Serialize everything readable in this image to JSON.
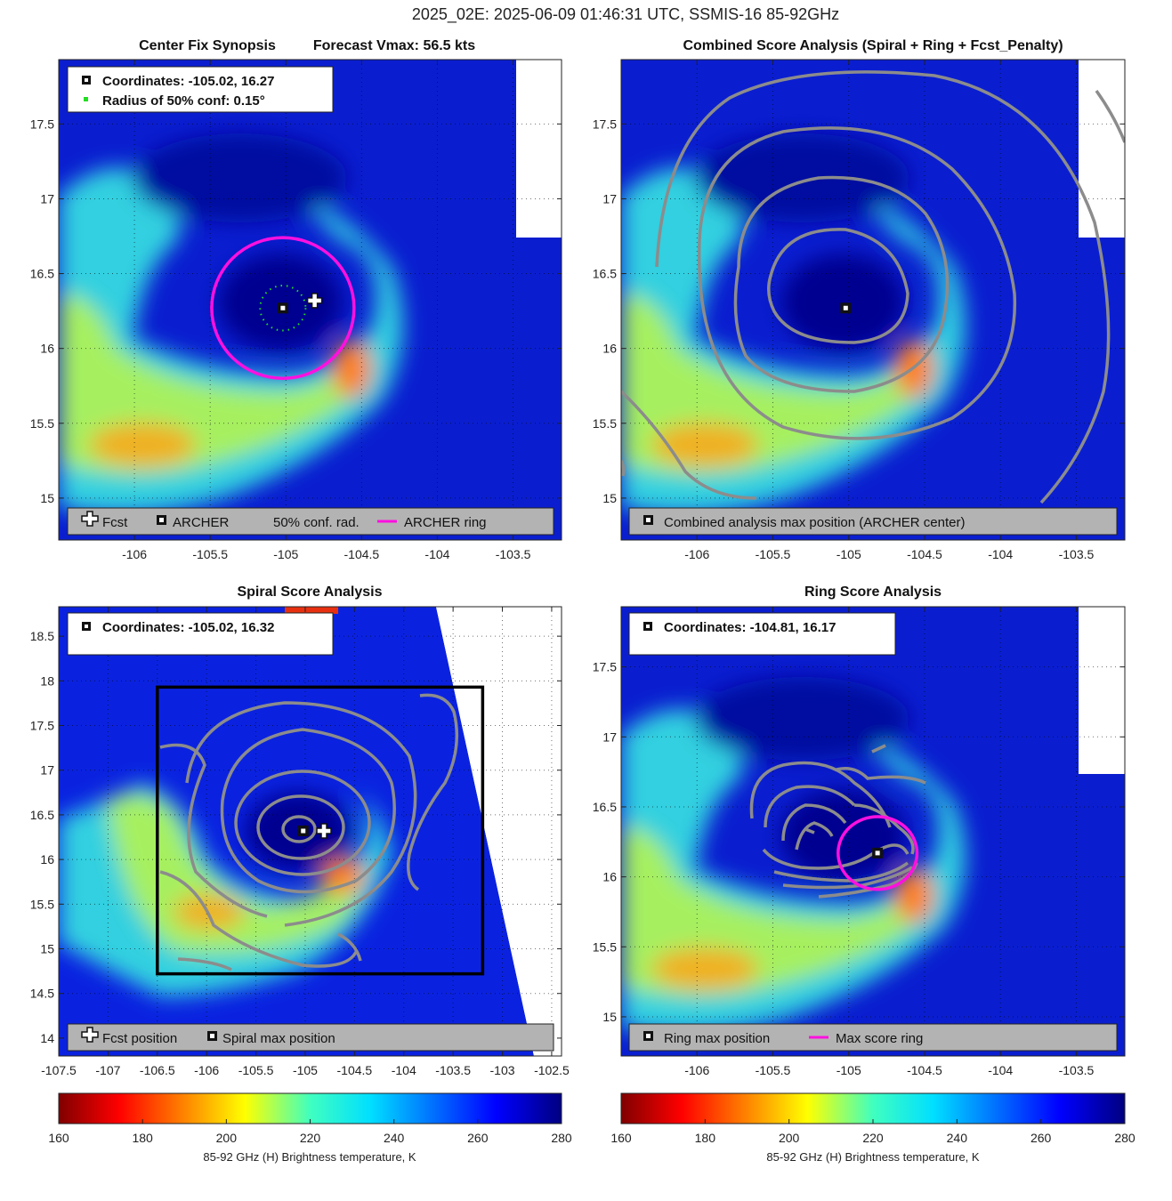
{
  "figure": {
    "suptitle": "2025_02E: 2025-06-09 01:46:31 UTC, SSMIS-16 85-92GHz"
  },
  "panels": {
    "center_fix": {
      "title_left": "Center Fix Synopsis",
      "title_right": "Forecast Vmax: 56.5 kts",
      "info_coords": "Coordinates: -105.02, 16.27",
      "info_radius": "Radius of 50% conf: 0.15°",
      "legend": [
        "Fcst",
        "ARCHER",
        "50% conf. rad.",
        "ARCHER ring"
      ]
    },
    "combined": {
      "title": "Combined Score Analysis (Spiral + Ring + Fcst_Penalty)",
      "legend": [
        "Combined analysis max position (ARCHER center)"
      ]
    },
    "spiral": {
      "title": "Spiral Score Analysis",
      "info_coords": "Coordinates: -105.02, 16.32",
      "legend": [
        "Fcst position",
        "Spiral max position"
      ]
    },
    "ring": {
      "title": "Ring Score Analysis",
      "info_coords": "Coordinates: -104.81, 16.17",
      "legend": [
        "Ring max position",
        "Max score ring"
      ]
    }
  },
  "chart_data": [
    {
      "type": "heatmap",
      "id": "center_fix",
      "title": "Center Fix Synopsis    Forecast Vmax: 56.5 kts",
      "xlim": [
        -106.5,
        -103.18
      ],
      "ylim": [
        14.72,
        17.93
      ],
      "xticks": [
        -106,
        -105.5,
        -105,
        -104.5,
        -104,
        -103.5
      ],
      "yticks": [
        15,
        15.5,
        16,
        16.5,
        17,
        17.5
      ],
      "archer_center": [
        -105.02,
        16.27
      ],
      "forecast_position": [
        -104.81,
        16.32
      ],
      "conf_radius_deg": 0.15,
      "archer_ring_radius_deg": 0.47,
      "grid": true
    },
    {
      "type": "heatmap",
      "id": "combined",
      "title": "Combined Score Analysis (Spiral + Ring + Fcst_Penalty)",
      "xlim": [
        -106.5,
        -103.18
      ],
      "ylim": [
        14.72,
        17.93
      ],
      "xticks": [
        -106,
        -105.5,
        -105,
        -104.5,
        -104,
        -103.5
      ],
      "yticks": [
        15,
        15.5,
        16,
        16.5,
        17,
        17.5
      ],
      "max_position": [
        -105.02,
        16.27
      ],
      "grid": true
    },
    {
      "type": "heatmap",
      "id": "spiral",
      "title": "Spiral Score Analysis",
      "xlim": [
        -107.5,
        -102.4
      ],
      "ylim": [
        13.8,
        18.83
      ],
      "xticks": [
        -107.5,
        -107,
        -106.5,
        -106,
        -105.5,
        -105,
        -104.5,
        -104,
        -103.5,
        -103,
        -102.5
      ],
      "yticks": [
        14,
        14.5,
        15,
        15.5,
        16,
        16.5,
        17,
        17.5,
        18,
        18.5
      ],
      "spiral_max_position": [
        -105.02,
        16.32
      ],
      "forecast_position": [
        -104.81,
        16.32
      ],
      "search_box": {
        "lon": [
          -106.5,
          -103.2
        ],
        "lat": [
          14.72,
          17.93
        ]
      },
      "grid": true
    },
    {
      "type": "heatmap",
      "id": "ring",
      "title": "Ring Score Analysis",
      "xlim": [
        -106.5,
        -103.18
      ],
      "ylim": [
        14.72,
        17.93
      ],
      "xticks": [
        -106,
        -105.5,
        -105,
        -104.5,
        -104,
        -103.5
      ],
      "yticks": [
        15,
        15.5,
        16,
        16.5,
        17,
        17.5
      ],
      "ring_max_position": [
        -104.81,
        16.17
      ],
      "max_score_ring_radius_deg": 0.26,
      "grid": true
    }
  ],
  "colorbar": {
    "label": "85-92 GHz (H) Brightness temperature, K",
    "ticks": [
      "160",
      "180",
      "200",
      "220",
      "240",
      "260",
      "280"
    ],
    "range": [
      160,
      280
    ]
  },
  "colors": {
    "archer_ring": "#ff10e0",
    "conf_radius": "#22dd22",
    "contour": "#888888",
    "legend_bg": "#b3b3b3"
  }
}
